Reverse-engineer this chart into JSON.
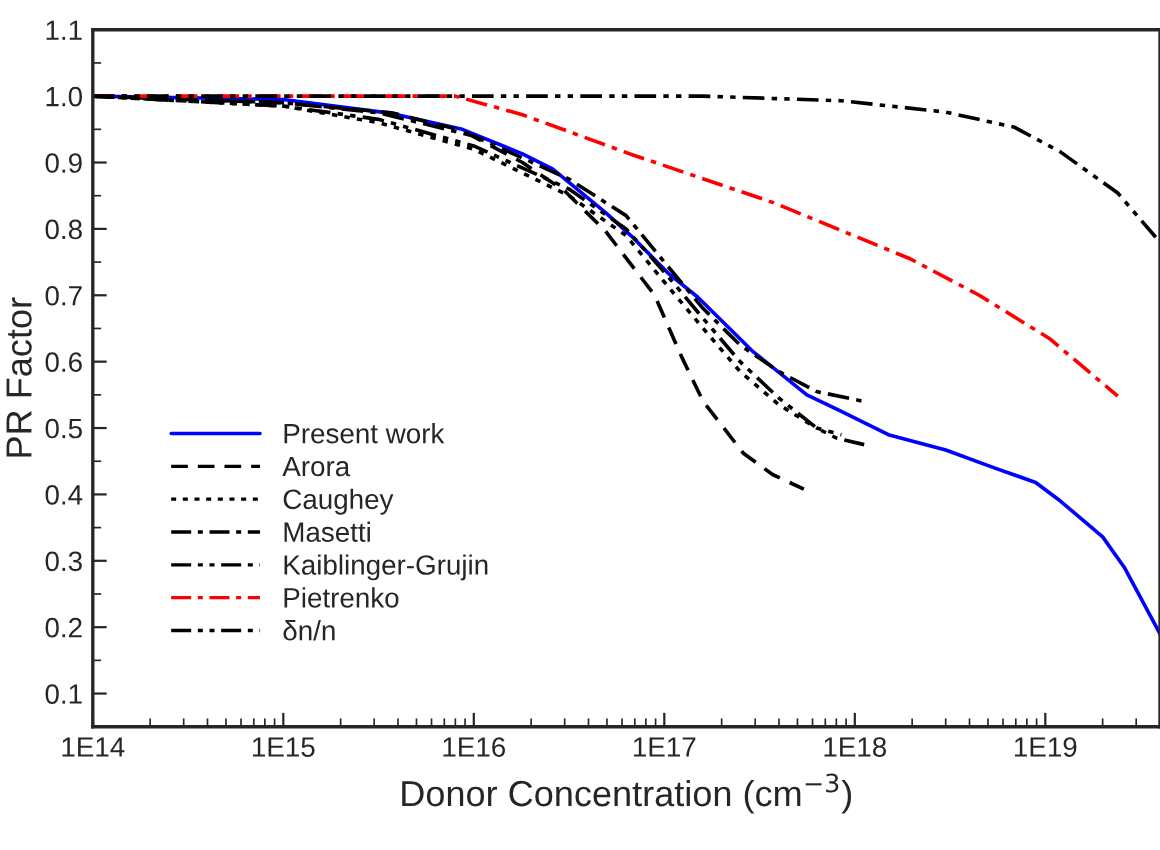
{
  "chart_data": {
    "type": "line",
    "xlabel": "Donor Concentration (cm$^{−3}$)",
    "ylabel": "PR Factor",
    "log": "x",
    "grid": false,
    "legend": "bottom left",
    "xlim": [
      100000000000000.0,
      4e+19
    ],
    "xticks": [
      {
        "value": 100000000000000.0,
        "label": "1E14"
      },
      {
        "value": 1000000000000000.0,
        "label": "1E15"
      },
      {
        "value": 1e+16,
        "label": "1E16"
      },
      {
        "value": 1e+17,
        "label": "1E17"
      },
      {
        "value": 1e+18,
        "label": "1E18"
      },
      {
        "value": 1e+19,
        "label": "1E19"
      }
    ],
    "ylim": [
      0.05,
      1.1
    ],
    "yticks": [
      0.1,
      0.2,
      0.3,
      0.4,
      0.5,
      0.6,
      0.7,
      0.8,
      0.9,
      {
        "value": 1,
        "label": "1.0"
      },
      1.1
    ],
    "series": [
      {
        "name": "Present work",
        "color": "#0000ff",
        "line_style": "solid",
        "x": [
          100000000000000.0,
          1000000000000000.0,
          3700000000000000.0,
          8700000000000000.0,
          1.8e+16,
          2.6e+16,
          4.9e+16,
          6.9e+16,
          1.05e+17,
          1.5e+17,
          2.9e+17,
          5.6e+17,
          8.5e+17,
          1.5e+18,
          3e+18,
          5.4e+18,
          8.9e+18,
          1.2e+19,
          2e+19,
          2.6e+19,
          4e+19
        ],
        "values": [
          1.0,
          0.995,
          0.974,
          0.95,
          0.913,
          0.89,
          0.825,
          0.786,
          0.733,
          0.697,
          0.616,
          0.55,
          0.525,
          0.49,
          0.467,
          0.44,
          0.418,
          0.39,
          0.336,
          0.29,
          0.19
        ]
      },
      {
        "name": "Arora",
        "color": "#000000",
        "line_style": "dashed",
        "x": [
          100000000000000.0,
          1000000000000000.0,
          3700000000000000.0,
          8700000000000000.0,
          1.8e+16,
          3e+16,
          4.9e+16,
          8.9e+16,
          1.23e+17,
          1.6e+17,
          2.6e+17,
          3.7e+17,
          5.4e+17
        ],
        "values": [
          1.0,
          0.99,
          0.975,
          0.948,
          0.9,
          0.857,
          0.797,
          0.7,
          0.608,
          0.54,
          0.462,
          0.43,
          0.408
        ]
      },
      {
        "name": "Caughey",
        "color": "#000000",
        "line_style": "dotted",
        "x": [
          100000000000000.0,
          1000000000000000.0,
          3160000000000000.0,
          1e+16,
          3.16e+16,
          6.3e+16,
          1e+17,
          1.6e+17,
          2.5e+17,
          4e+17,
          6.3e+17,
          8.5e+17
        ],
        "values": [
          1.0,
          0.985,
          0.96,
          0.92,
          0.85,
          0.79,
          0.72,
          0.65,
          0.585,
          0.535,
          0.5,
          0.49
        ]
      },
      {
        "name": "Masetti",
        "color": "#000000",
        "line_style": "dashdot",
        "x": [
          100000000000000.0,
          1000000000000000.0,
          3160000000000000.0,
          1e+16,
          3.16e+16,
          6.3e+16,
          1e+17,
          1.6e+17,
          2.5e+17,
          4e+17,
          6.3e+17,
          1.12e+18
        ],
        "values": [
          1.0,
          0.99,
          0.975,
          0.94,
          0.875,
          0.82,
          0.75,
          0.68,
          0.625,
          0.585,
          0.555,
          0.54
        ]
      },
      {
        "name": "Kaiblinger-Grujin",
        "color": "#000000",
        "line_style": "dashdotdot",
        "x": [
          100000000000000.0,
          1000000000000000.0,
          3160000000000000.0,
          1e+16,
          3.16e+16,
          6.3e+16,
          1e+17,
          1.6e+17,
          2.5e+17,
          4e+17,
          6.3e+17,
          8e+17,
          1.12e+18
        ],
        "values": [
          1.0,
          0.985,
          0.965,
          0.925,
          0.86,
          0.8,
          0.735,
          0.665,
          0.6,
          0.545,
          0.5,
          0.485,
          0.475
        ]
      },
      {
        "name": "Pietrenko",
        "color": "#ff0000",
        "line_style": "dashdot",
        "x": [
          100000000000000.0,
          1000000000000000.0,
          8000000000000000.0,
          1.8e+16,
          6.9e+16,
          3.7e+17,
          1.95e+18,
          4.5e+18,
          1.05e+19,
          2.4e+19
        ],
        "values": [
          1.0,
          1.0,
          1.0,
          0.972,
          0.911,
          0.84,
          0.755,
          0.7,
          0.635,
          0.548
        ]
      },
      {
        "name": "δn/n",
        "color": "#000000",
        "line_style": "dashdotdot",
        "x": [
          100000000000000.0,
          1e+16,
          1.6e+17,
          8.5e+17,
          3e+18,
          6.9e+18,
          1.2e+19,
          2.4e+19,
          4e+19
        ],
        "values": [
          1.0,
          1.0,
          1.0,
          0.993,
          0.976,
          0.953,
          0.916,
          0.854,
          0.78
        ]
      }
    ]
  }
}
